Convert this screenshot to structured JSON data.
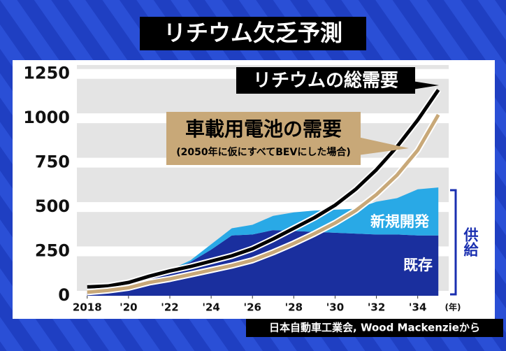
{
  "chart_data": {
    "type": "line",
    "title": "リチウム欠乏予測",
    "note": "(2050年に仮にすべてBEVにした場合)",
    "supply_label": "供給",
    "x_unit": "(年)",
    "source": "日本自動車工業会, Wood Mackenzieから",
    "x": [
      2018,
      2019,
      2020,
      2021,
      2022,
      2023,
      2024,
      2025,
      2026,
      2027,
      2028,
      2029,
      2030,
      2031,
      2032,
      2033,
      2034,
      2035
    ],
    "series": [
      {
        "name": "既存",
        "style": "stacked-area",
        "color": "#1a2f9e",
        "values": [
          25,
          35,
          60,
          120,
          140,
          190,
          260,
          340,
          345,
          370,
          365,
          360,
          355,
          350,
          345,
          345,
          340,
          340
        ]
      },
      {
        "name": "新規開発",
        "style": "stacked-area",
        "color": "#29a9e6",
        "values": [
          0,
          0,
          0,
          5,
          5,
          10,
          30,
          40,
          55,
          80,
          105,
          120,
          130,
          140,
          185,
          205,
          260,
          270
        ]
      },
      {
        "name": "リチウムの総需要",
        "style": "line",
        "color": "#000000",
        "values": [
          50,
          55,
          75,
          110,
          140,
          165,
          195,
          225,
          265,
          320,
          380,
          440,
          510,
          600,
          710,
          840,
          990,
          1160
        ]
      },
      {
        "name": "車載用電池の需要",
        "style": "line",
        "color": "#c8a878",
        "values": [
          20,
          30,
          45,
          75,
          95,
          120,
          145,
          170,
          200,
          245,
          295,
          350,
          410,
          480,
          570,
          680,
          820,
          1020
        ]
      }
    ],
    "xlim": [
      2017.5,
      2035.5
    ],
    "xticks": [
      2018,
      {
        "value": 2020,
        "label": "'20"
      },
      {
        "value": 2022,
        "label": "'22"
      },
      {
        "value": 2024,
        "label": "'24"
      },
      {
        "value": 2026,
        "label": "'26"
      },
      {
        "value": 2028,
        "label": "'28"
      },
      {
        "value": 2030,
        "label": "'30"
      },
      {
        "value": 2032,
        "label": "'32"
      },
      {
        "value": 2034,
        "label": "'34"
      }
    ],
    "ylim": [
      0,
      1300
    ],
    "yticks": [
      0,
      250,
      500,
      750,
      1000,
      1250
    ],
    "grid": true
  }
}
